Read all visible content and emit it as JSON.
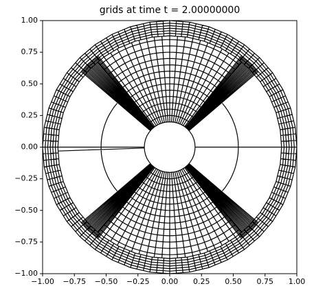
{
  "chart_data": {
    "type": "mesh",
    "title": "grids at time t =      2.00000000",
    "xlim": [
      -1,
      1
    ],
    "ylim": [
      -1,
      1
    ],
    "xticks": [
      {
        "value": -1,
        "label": "−1.00"
      },
      {
        "value": -0.75,
        "label": "−0.75"
      },
      {
        "value": -0.5,
        "label": "−0.50"
      },
      {
        "value": -0.25,
        "label": "−0.25"
      },
      {
        "value": 0,
        "label": "0.00"
      },
      {
        "value": 0.25,
        "label": "0.25"
      },
      {
        "value": 0.5,
        "label": "0.50"
      },
      {
        "value": 0.75,
        "label": "0.75"
      },
      {
        "value": 1,
        "label": "1.00"
      }
    ],
    "yticks": [
      {
        "value": -1,
        "label": "−1.00"
      },
      {
        "value": -0.75,
        "label": "−0.75"
      },
      {
        "value": -0.5,
        "label": "−0.50"
      },
      {
        "value": -0.25,
        "label": "−0.25"
      },
      {
        "value": 0,
        "label": "0.00"
      },
      {
        "value": 0.25,
        "label": "0.25"
      },
      {
        "value": 0.5,
        "label": "0.50"
      },
      {
        "value": 0.75,
        "label": "0.75"
      },
      {
        "value": 1,
        "label": "1.00"
      }
    ],
    "color": "#000000"
  }
}
